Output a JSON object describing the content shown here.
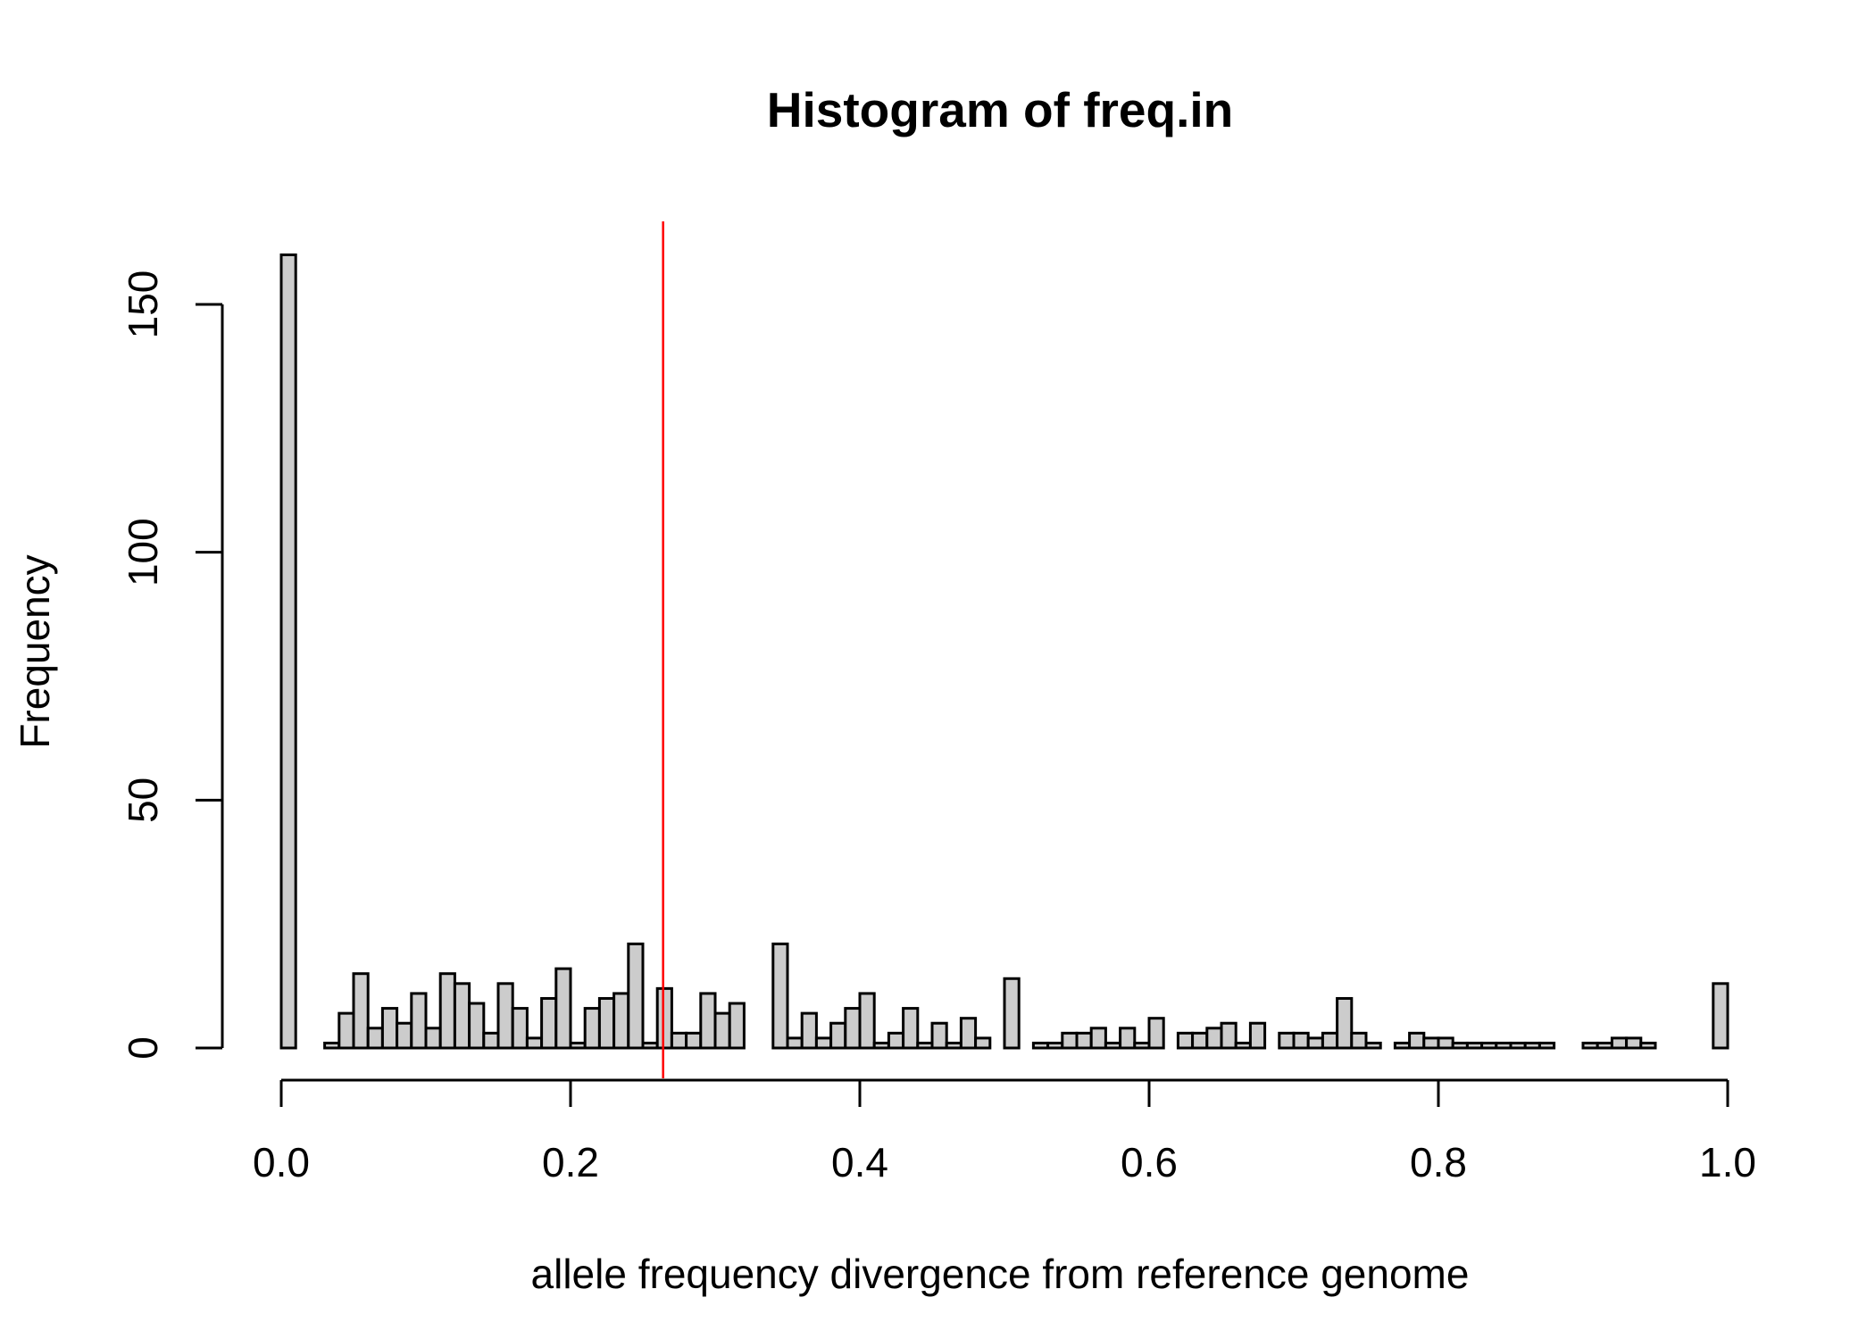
{
  "chart_data": {
    "type": "bar",
    "title": "Histogram of freq.in",
    "xlabel": "allele frequency divergence from reference genome",
    "ylabel": "Frequency",
    "xlim": [
      0,
      1
    ],
    "ylim": [
      0,
      160
    ],
    "bin_width": 0.01,
    "x_ticks": [
      0,
      0.2,
      0.4,
      0.6,
      0.8,
      1.0
    ],
    "x_tick_labels": [
      "0.0",
      "0.2",
      "0.4",
      "0.6",
      "0.8",
      "1.0"
    ],
    "y_ticks": [
      0,
      50,
      100,
      150
    ],
    "y_tick_labels": [
      "0",
      "50",
      "100",
      "150"
    ],
    "bar_color": "#cccccc",
    "border_color": "#000000",
    "vline": {
      "x": 0.264,
      "color": "#ff0000"
    },
    "grid": false,
    "counts": [
      160,
      0,
      0,
      1,
      7,
      15,
      4,
      8,
      5,
      11,
      4,
      15,
      13,
      9,
      3,
      13,
      8,
      2,
      10,
      16,
      1,
      8,
      10,
      11,
      21,
      1,
      12,
      3,
      3,
      11,
      7,
      9,
      0,
      0,
      21,
      2,
      7,
      2,
      5,
      8,
      11,
      1,
      3,
      8,
      1,
      5,
      1,
      6,
      2,
      0,
      14,
      0,
      1,
      1,
      3,
      3,
      4,
      1,
      4,
      1,
      6,
      0,
      3,
      3,
      4,
      5,
      1,
      5,
      0,
      3,
      3,
      2,
      3,
      10,
      3,
      1,
      0,
      1,
      3,
      2,
      2,
      1,
      1,
      1,
      1,
      1,
      1,
      1,
      0,
      0,
      1,
      1,
      2,
      2,
      1,
      0,
      0,
      0,
      0,
      13
    ]
  }
}
